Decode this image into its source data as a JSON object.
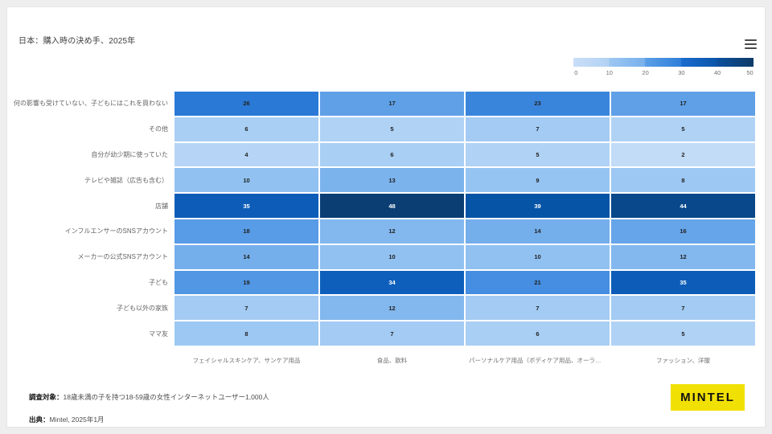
{
  "title": "日本：購入時の決め手、2025年",
  "legend": {
    "ticks": [
      "0",
      "10",
      "20",
      "30",
      "40",
      "50"
    ]
  },
  "chart_data": {
    "type": "heatmap",
    "title": "日本：購入時の決め手、2025年",
    "rows": [
      "何の影響も受けていない、子どもにはこれを買わない",
      "その他",
      "自分が幼少期に使っていた",
      "テレビや雑誌（広告も含む）",
      "店舗",
      "インフルエンサーのSNSアカウント",
      "メーカーの公式SNSアカウント",
      "子ども",
      "子ども以外の家族",
      "ママ友"
    ],
    "columns": [
      "フェイシャルスキンケア、サンケア用品",
      "食品、飲料",
      "パーソナルケア用品（ボディケア用品、オーラルケ…",
      "ファッション、洋服"
    ],
    "values": [
      [
        26,
        17,
        23,
        17
      ],
      [
        6,
        5,
        7,
        5
      ],
      [
        4,
        6,
        5,
        2
      ],
      [
        10,
        13,
        9,
        8
      ],
      [
        35,
        48,
        39,
        44
      ],
      [
        18,
        12,
        14,
        16
      ],
      [
        14,
        10,
        10,
        12
      ],
      [
        19,
        34,
        21,
        35
      ],
      [
        7,
        12,
        7,
        7
      ],
      [
        8,
        7,
        6,
        5
      ]
    ],
    "scale": {
      "min": 0,
      "max": 50,
      "stops": [
        [
          0,
          "#cfe3f9"
        ],
        [
          10,
          "#90c1f1"
        ],
        [
          20,
          "#4a92e3"
        ],
        [
          30,
          "#1568cd"
        ],
        [
          40,
          "#0452a2"
        ],
        [
          50,
          "#0d3a68"
        ]
      ],
      "light_text_threshold": 30,
      "dark_text_color": "#222222",
      "light_text_color": "#ffffff"
    }
  },
  "footer": {
    "base_label": "調査対象：",
    "base_text": "18歳未満の子を持つ18-59歳の女性インターネットユーザー1,000人",
    "source_label": "出典：",
    "source_text": "Mintel, 2025年1月"
  },
  "logo": {
    "text": "MINTEL",
    "bg": "#f1e004"
  }
}
